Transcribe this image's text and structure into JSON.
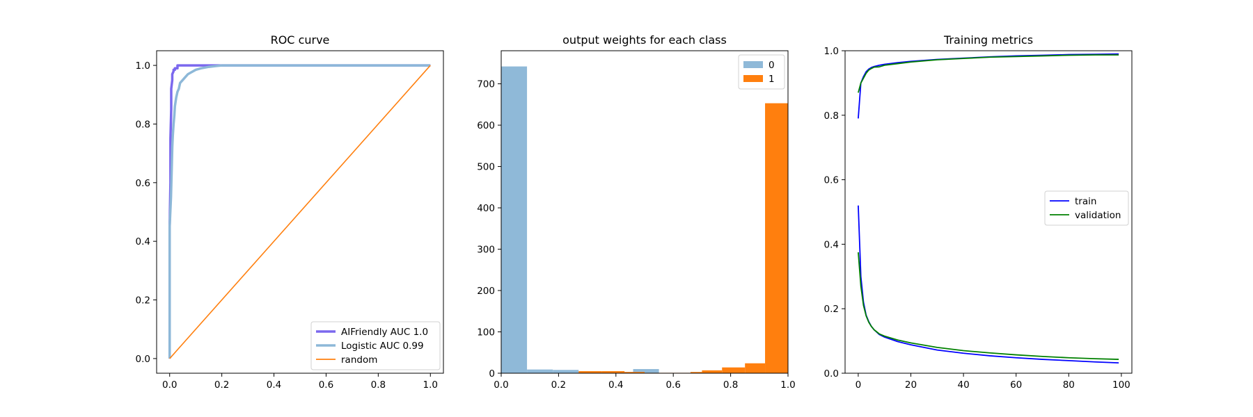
{
  "chart_data": [
    {
      "type": "line",
      "title": "ROC curve",
      "xlabel": "",
      "ylabel": "",
      "xlim": [
        -0.05,
        1.05
      ],
      "ylim": [
        -0.05,
        1.05
      ],
      "xticks": [
        0.0,
        0.2,
        0.4,
        0.6,
        0.8,
        1.0
      ],
      "yticks": [
        0.0,
        0.2,
        0.4,
        0.6,
        0.8,
        1.0
      ],
      "xtick_labels": [
        "0.0",
        "0.2",
        "0.4",
        "0.6",
        "0.8",
        "1.0"
      ],
      "ytick_labels": [
        "0.0",
        "0.2",
        "0.4",
        "0.6",
        "0.8",
        "1.0"
      ],
      "grid": false,
      "legend_position": "lower-right",
      "series": [
        {
          "name": "AIFriendly AUC 1.0",
          "color": "#7b68ee",
          "x": [
            0,
            0,
            0.003,
            0.003,
            0.006,
            0.006,
            0.01,
            0.01,
            0.015,
            0.015,
            0.02,
            0.02,
            0.03,
            0.03,
            0.05,
            0.1,
            0.2,
            1.0
          ],
          "y": [
            0,
            0.45,
            0.6,
            0.75,
            0.85,
            0.92,
            0.95,
            0.97,
            0.98,
            0.985,
            0.985,
            0.99,
            0.99,
            1.0,
            1.0,
            1.0,
            1.0,
            1.0
          ]
        },
        {
          "name": "Logistic AUC 0.99",
          "color": "#8db8d8",
          "x": [
            0,
            0,
            0.005,
            0.008,
            0.01,
            0.012,
            0.015,
            0.018,
            0.02,
            0.025,
            0.03,
            0.035,
            0.04,
            0.05,
            0.06,
            0.07,
            0.08,
            0.1,
            0.12,
            0.15,
            0.18,
            0.2,
            0.3,
            1.0
          ],
          "y": [
            0,
            0.45,
            0.55,
            0.65,
            0.72,
            0.76,
            0.8,
            0.83,
            0.86,
            0.89,
            0.91,
            0.92,
            0.94,
            0.95,
            0.96,
            0.97,
            0.975,
            0.985,
            0.99,
            0.995,
            0.998,
            1.0,
            1.0,
            1.0
          ]
        },
        {
          "name": "random",
          "color": "#ff7f0e",
          "x": [
            0,
            1
          ],
          "y": [
            0,
            1
          ]
        }
      ]
    },
    {
      "type": "bar",
      "title": "output weights for each class",
      "xlabel": "",
      "ylabel": "",
      "xlim": [
        0,
        1.0
      ],
      "ylim": [
        0,
        780
      ],
      "xticks": [
        0.0,
        0.2,
        0.4,
        0.6,
        0.8,
        1.0
      ],
      "yticks": [
        0,
        100,
        200,
        300,
        400,
        500,
        600,
        700
      ],
      "xtick_labels": [
        "0.0",
        "0.2",
        "0.4",
        "0.6",
        "0.8",
        "1.0"
      ],
      "ytick_labels": [
        "0",
        "100",
        "200",
        "300",
        "400",
        "500",
        "600",
        "700"
      ],
      "grid": false,
      "legend_position": "upper-right",
      "series": [
        {
          "name": "0",
          "color": "#8fb9d8",
          "bins": [
            [
              0.0,
              0.09
            ],
            [
              0.09,
              0.18
            ],
            [
              0.18,
              0.27
            ],
            [
              0.27,
              0.36
            ],
            [
              0.36,
              0.46
            ],
            [
              0.46,
              0.55
            ]
          ],
          "values": [
            742,
            9,
            8,
            3,
            3,
            10
          ]
        },
        {
          "name": "1",
          "color": "#ff7f0e",
          "bins": [
            [
              0.27,
              0.35
            ],
            [
              0.35,
              0.43
            ],
            [
              0.43,
              0.5
            ],
            [
              0.5,
              0.58
            ],
            [
              0.58,
              0.66
            ],
            [
              0.66,
              0.7
            ],
            [
              0.7,
              0.77
            ],
            [
              0.77,
              0.85
            ],
            [
              0.85,
              0.92
            ],
            [
              0.92,
              1.0
            ]
          ],
          "values": [
            5,
            5,
            3,
            1,
            1,
            3,
            7,
            14,
            24,
            653
          ]
        }
      ]
    },
    {
      "type": "line",
      "title": "Training metrics",
      "xlabel": "",
      "ylabel": "",
      "xlim": [
        -5,
        104
      ],
      "ylim": [
        0,
        1.0
      ],
      "xticks": [
        0,
        20,
        40,
        60,
        80,
        100
      ],
      "yticks": [
        0.0,
        0.2,
        0.4,
        0.6,
        0.8,
        1.0
      ],
      "xtick_labels": [
        "0",
        "20",
        "40",
        "60",
        "80",
        "100"
      ],
      "ytick_labels": [
        "0.0",
        "0.2",
        "0.4",
        "0.6",
        "0.8",
        "1.0"
      ],
      "grid": false,
      "legend_position": "center-right",
      "series": [
        {
          "name": "train",
          "color": "#0000ff",
          "x": [
            0,
            1,
            2,
            3,
            4,
            5,
            6,
            8,
            10,
            15,
            20,
            30,
            40,
            50,
            60,
            70,
            80,
            90,
            99
          ],
          "y": [
            0.79,
            0.9,
            0.92,
            0.935,
            0.943,
            0.948,
            0.951,
            0.955,
            0.958,
            0.963,
            0.967,
            0.973,
            0.977,
            0.981,
            0.984,
            0.986,
            0.988,
            0.989,
            0.99
          ]
        },
        {
          "name": "validation",
          "color": "#008000",
          "x": [
            0,
            1,
            2,
            3,
            4,
            5,
            6,
            8,
            10,
            15,
            20,
            30,
            40,
            50,
            60,
            70,
            80,
            90,
            99
          ],
          "y": [
            0.87,
            0.9,
            0.915,
            0.93,
            0.94,
            0.945,
            0.949,
            0.95,
            0.955,
            0.96,
            0.965,
            0.972,
            0.976,
            0.98,
            0.982,
            0.984,
            0.986,
            0.987,
            0.987
          ]
        },
        {
          "name": "train",
          "color": "#0000ff",
          "legend": false,
          "x": [
            0,
            1,
            2,
            3,
            4,
            5,
            6,
            8,
            10,
            15,
            20,
            30,
            40,
            50,
            60,
            70,
            80,
            90,
            99
          ],
          "y": [
            0.52,
            0.3,
            0.22,
            0.18,
            0.16,
            0.145,
            0.135,
            0.12,
            0.112,
            0.098,
            0.088,
            0.072,
            0.062,
            0.054,
            0.048,
            0.043,
            0.039,
            0.035,
            0.032
          ]
        },
        {
          "name": "validation",
          "color": "#008000",
          "legend": false,
          "x": [
            0,
            1,
            2,
            3,
            4,
            5,
            6,
            8,
            10,
            15,
            20,
            30,
            40,
            50,
            60,
            70,
            80,
            90,
            99
          ],
          "y": [
            0.375,
            0.27,
            0.21,
            0.178,
            0.158,
            0.145,
            0.135,
            0.122,
            0.115,
            0.103,
            0.094,
            0.08,
            0.07,
            0.063,
            0.057,
            0.052,
            0.048,
            0.045,
            0.043
          ]
        }
      ]
    }
  ]
}
